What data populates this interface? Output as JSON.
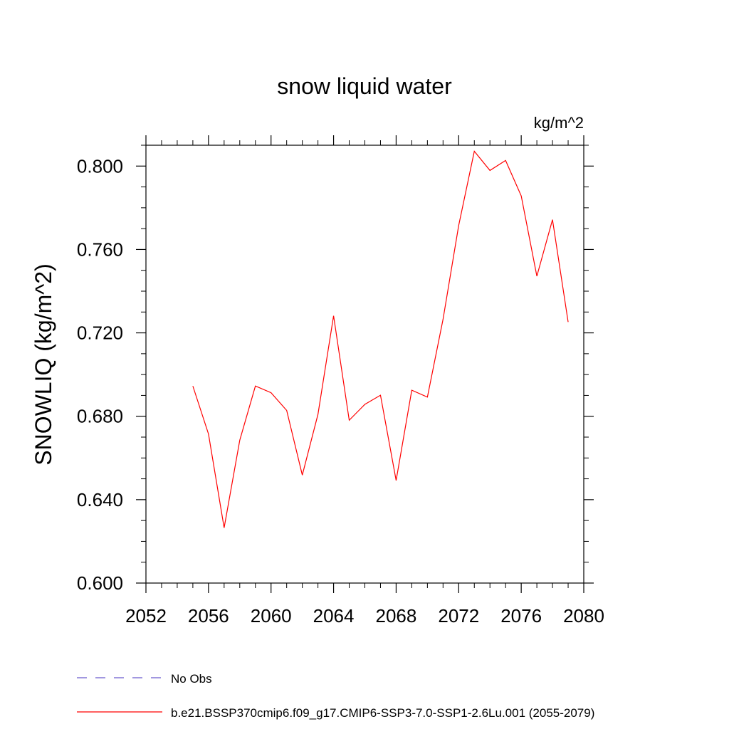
{
  "chart_data": {
    "type": "line",
    "title": "snow liquid water",
    "units_label": "kg/m^2",
    "ylabel": "SNOWLIQ  (kg/m^2)",
    "xlabel": "",
    "xlim": [
      2052,
      2080
    ],
    "ylim": [
      0.6,
      0.81
    ],
    "x_ticks": [
      "2052",
      "2056",
      "2060",
      "2064",
      "2068",
      "2072",
      "2076",
      "2080"
    ],
    "y_ticks": [
      "0.600",
      "0.640",
      "0.680",
      "0.720",
      "0.760",
      "0.800"
    ],
    "grid": false,
    "legend_position": "bottom",
    "series": [
      {
        "name": "b.e21.BSSP370cmip6.f09_g17.CMIP6-SSP3-7.0-SSP1-2.6Lu.001 (2055-2079)",
        "color": "#ff0000",
        "style": "solid",
        "x": [
          2055,
          2056,
          2057,
          2058,
          2059,
          2060,
          2061,
          2062,
          2063,
          2064,
          2065,
          2066,
          2067,
          2068,
          2069,
          2070,
          2071,
          2072,
          2073,
          2074,
          2075,
          2076,
          2077,
          2078,
          2079
        ],
        "values": [
          0.6945,
          0.6715,
          0.6265,
          0.6685,
          0.6945,
          0.6913,
          0.6828,
          0.6518,
          0.6809,
          0.7282,
          0.6781,
          0.6857,
          0.6901,
          0.6492,
          0.6925,
          0.6892,
          0.7265,
          0.7715,
          0.8071,
          0.7979,
          0.8027,
          0.7857,
          0.7472,
          0.7743,
          0.7252
        ]
      }
    ],
    "legend": [
      {
        "label": "No Obs",
        "color": "#6a5acd",
        "style": "dashed"
      },
      {
        "label": "b.e21.BSSP370cmip6.f09_g17.CMIP6-SSP3-7.0-SSP1-2.6Lu.001 (2055-2079)",
        "color": "#ff0000",
        "style": "solid"
      }
    ]
  }
}
